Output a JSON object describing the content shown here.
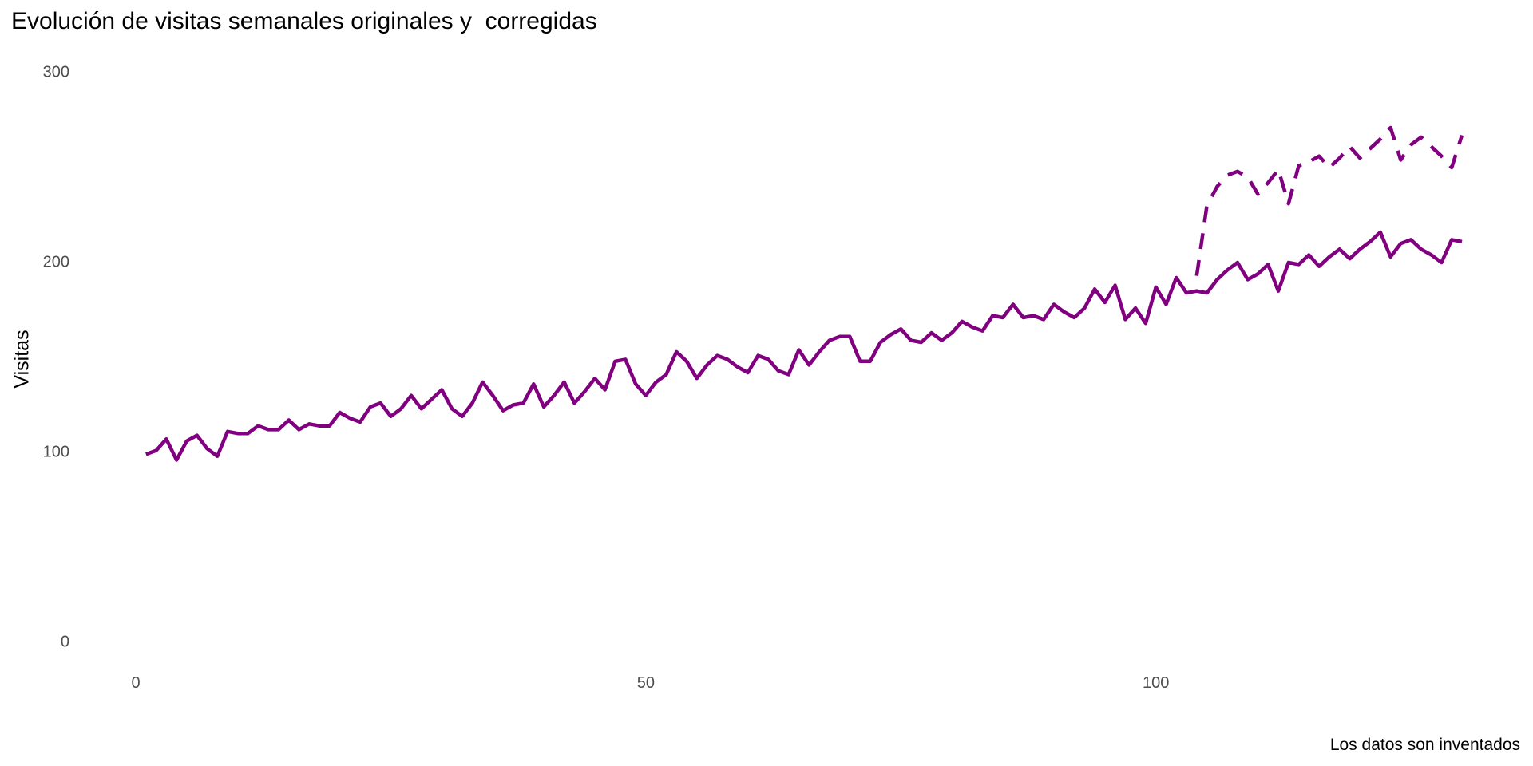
{
  "chart_data": {
    "type": "line",
    "title": "Evolución de visitas semanales originales y  corregidas",
    "xlabel": "",
    "ylabel": "Visitas",
    "caption": "Los datos son inventados",
    "xlim": [
      0,
      130
    ],
    "ylim": [
      0,
      300
    ],
    "x_ticks": [
      0,
      50,
      100
    ],
    "y_ticks": [
      0,
      100,
      200,
      300
    ],
    "grid": false,
    "legend": "none",
    "line_color": "#800080",
    "series": [
      {
        "style": "solid",
        "x": [
          1,
          2,
          3,
          4,
          5,
          6,
          7,
          8,
          9,
          10,
          11,
          12,
          13,
          14,
          15,
          16,
          17,
          18,
          19,
          20,
          21,
          22,
          23,
          24,
          25,
          26,
          27,
          28,
          29,
          30,
          31,
          32,
          33,
          34,
          35,
          36,
          37,
          38,
          39,
          40,
          41,
          42,
          43,
          44,
          45,
          46,
          47,
          48,
          49,
          50,
          51,
          52,
          53,
          54,
          55,
          56,
          57,
          58,
          59,
          60,
          61,
          62,
          63,
          64,
          65,
          66,
          67,
          68,
          69,
          70,
          71,
          72,
          73,
          74,
          75,
          76,
          77,
          78,
          79,
          80,
          81,
          82,
          83,
          84,
          85,
          86,
          87,
          88,
          89,
          90,
          91,
          92,
          93,
          94,
          95,
          96,
          97,
          98,
          99,
          100,
          101,
          102,
          103,
          104,
          105,
          106,
          107,
          108,
          109,
          110,
          111,
          112,
          113,
          114,
          115,
          116,
          117,
          118,
          119,
          120,
          121,
          122,
          123,
          124,
          125,
          126,
          127,
          128,
          129,
          130
        ],
        "values": [
          99,
          101,
          107,
          96,
          106,
          109,
          102,
          98,
          111,
          110,
          110,
          114,
          112,
          112,
          117,
          112,
          115,
          114,
          114,
          121,
          118,
          116,
          124,
          126,
          119,
          123,
          130,
          123,
          128,
          133,
          123,
          119,
          126,
          137,
          130,
          122,
          125,
          126,
          136,
          124,
          130,
          137,
          126,
          132,
          139,
          133,
          148,
          149,
          136,
          130,
          137,
          141,
          153,
          148,
          139,
          146,
          151,
          149,
          145,
          142,
          151,
          149,
          143,
          141,
          154,
          146,
          153,
          159,
          161,
          161,
          148,
          148,
          158,
          162,
          165,
          159,
          158,
          163,
          159,
          163,
          169,
          166,
          164,
          172,
          171,
          178,
          171,
          172,
          170,
          178,
          174,
          171,
          176,
          186,
          179,
          188,
          170,
          176,
          168,
          187,
          178,
          192,
          184,
          185,
          184,
          191,
          196,
          200,
          191,
          194,
          199,
          185,
          200,
          199,
          204,
          198,
          203,
          207,
          202,
          207,
          211,
          216,
          203,
          210,
          212,
          207,
          204,
          200,
          212,
          211
        ]
      },
      {
        "style": "dashed",
        "x": [
          104,
          105,
          106,
          107,
          108,
          109,
          110,
          111,
          112,
          113,
          114,
          115,
          116,
          117,
          118,
          119,
          120,
          121,
          122,
          123,
          124,
          125,
          126,
          127,
          128,
          129,
          130
        ],
        "values": [
          193,
          230,
          240,
          246,
          248,
          245,
          236,
          242,
          249,
          231,
          251,
          253,
          256,
          250,
          255,
          261,
          255,
          260,
          265,
          271,
          254,
          262,
          266,
          261,
          256,
          250,
          267
        ]
      }
    ]
  }
}
